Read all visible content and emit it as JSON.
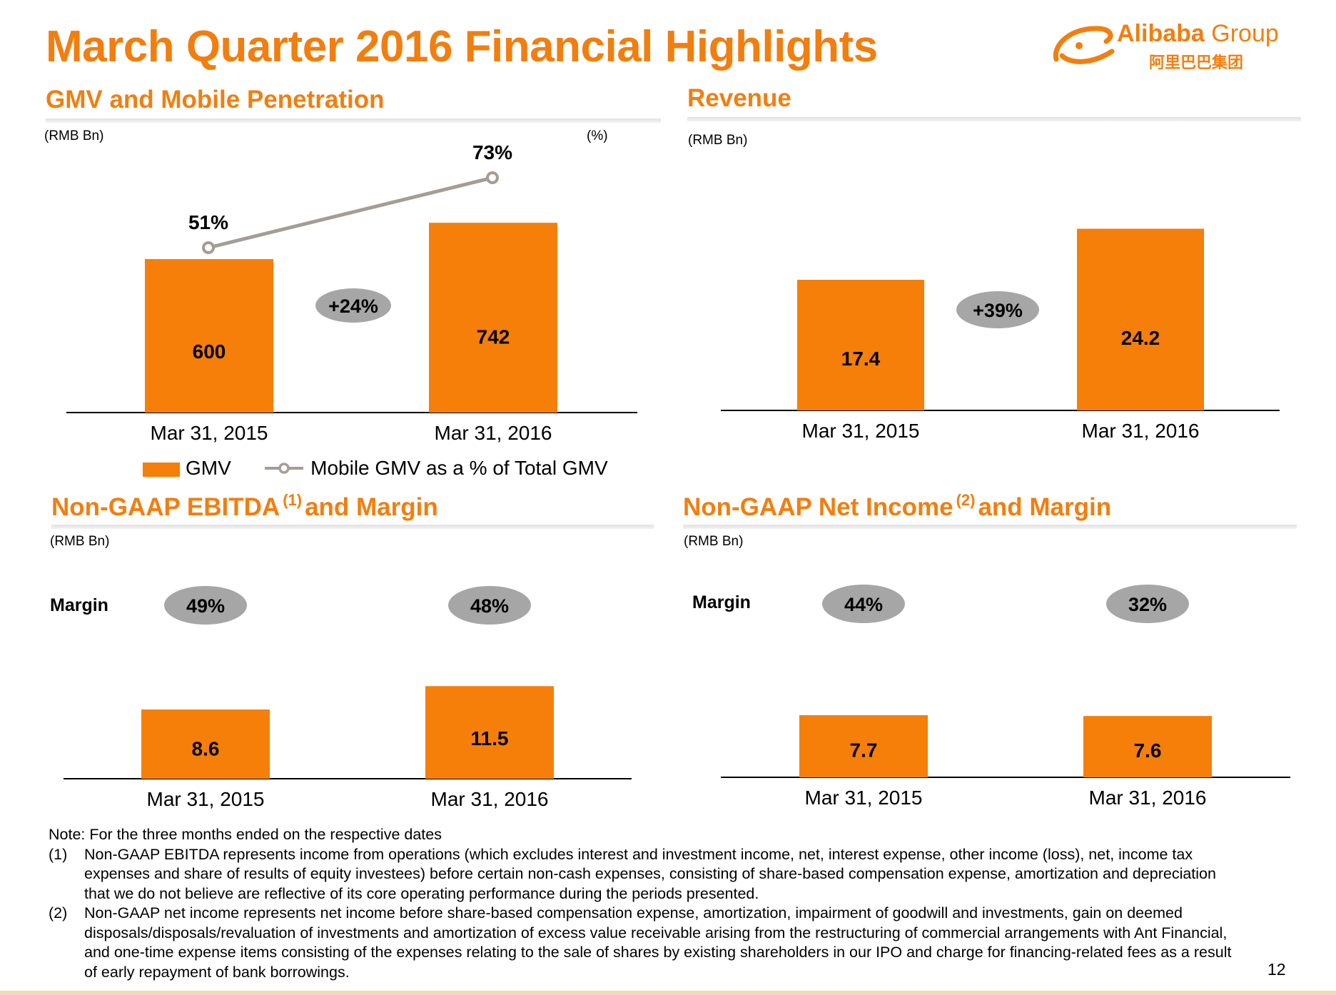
{
  "title": "March Quarter 2016 Financial Highlights",
  "logo": {
    "name": "Alibaba",
    "group": "Group",
    "chinese": "阿里巴巴集团"
  },
  "page_number": "12",
  "colors": {
    "accent": "#F27E0E",
    "bar": "#F57F08",
    "pill": "#A6A6A6",
    "line": "#A59D94"
  },
  "chart_data": [
    {
      "type": "bar",
      "title": "GMV and Mobile Penetration",
      "unit_left": "(RMB Bn)",
      "unit_right": "(%)",
      "categories": [
        "Mar 31, 2015",
        "Mar 31, 2016"
      ],
      "series": [
        {
          "name": "GMV",
          "type": "bar",
          "values": [
            600,
            742
          ],
          "labels": [
            "600",
            "742"
          ]
        },
        {
          "name": "Mobile GMV as a % of Total GMV",
          "type": "line",
          "values": [
            51,
            73
          ],
          "labels": [
            "51%",
            "73%"
          ]
        }
      ],
      "growth_label": "+24%",
      "legend": "bottom"
    },
    {
      "type": "bar",
      "title": "Revenue",
      "unit_left": "(RMB Bn)",
      "categories": [
        "Mar 31, 2015",
        "Mar 31, 2016"
      ],
      "values": [
        17.4,
        24.2
      ],
      "labels": [
        "17.4",
        "24.2"
      ],
      "growth_label": "+39%"
    },
    {
      "type": "bar",
      "title": "Non-GAAP EBITDA",
      "title_note": "(1)",
      "title_suffix": "and Margin",
      "unit_left": "(RMB Bn)",
      "categories": [
        "Mar 31, 2015",
        "Mar 31, 2016"
      ],
      "values": [
        8.6,
        11.5
      ],
      "labels": [
        "8.6",
        "11.5"
      ],
      "margin_label": "Margin",
      "margins": [
        "49%",
        "48%"
      ]
    },
    {
      "type": "bar",
      "title": "Non-GAAP Net Income",
      "title_note": "(2)",
      "title_suffix": "and Margin",
      "unit_left": "(RMB Bn)",
      "categories": [
        "Mar 31, 2015",
        "Mar 31, 2016"
      ],
      "values": [
        7.7,
        7.6
      ],
      "labels": [
        "7.7",
        "7.6"
      ],
      "margin_label": "Margin",
      "margins": [
        "44%",
        "32%"
      ]
    }
  ],
  "notes": {
    "heading": "Note: For the three months ended on the respective dates",
    "items": [
      {
        "num": "(1)",
        "lines": [
          "Non-GAAP EBITDA represents income from operations (which excludes interest and investment income, net, interest expense, other income (loss), net, income tax",
          "expenses and share of results of equity investees) before certain non-cash expenses, consisting of share-based compensation expense, amortization and depreciation",
          "that we do not believe are reflective of its core operating performance during the periods presented."
        ]
      },
      {
        "num": "(2)",
        "lines": [
          "Non-GAAP net income represents net income before share-based compensation expense, amortization, impairment of goodwill and investments, gain on deemed",
          "disposals/disposals/revaluation of investments and amortization of excess value receivable arising from the restructuring of commercial arrangements with Ant Financial,",
          "and one-time expense items consisting of the expenses relating to the sale of shares by existing shareholders in our IPO and charge for financing-related fees as a result",
          "of early repayment of bank borrowings."
        ]
      }
    ]
  }
}
